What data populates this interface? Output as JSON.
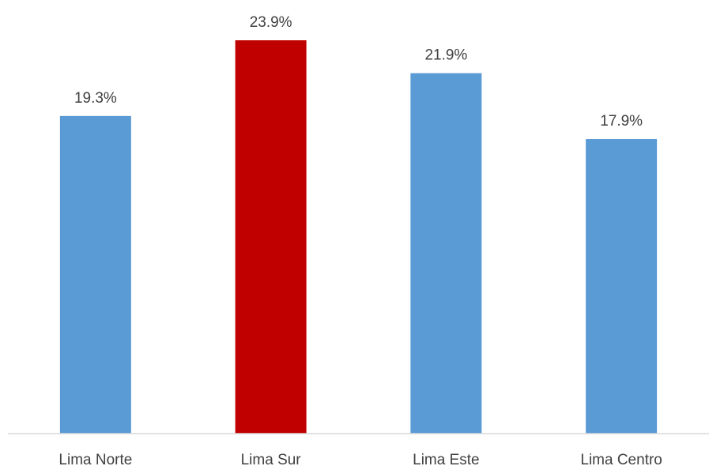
{
  "chart_data": {
    "type": "bar",
    "categories": [
      "Lima Norte",
      "Lima Sur",
      "Lima Este",
      "Lima Centro"
    ],
    "values": [
      19.3,
      23.9,
      21.9,
      17.9
    ],
    "data_labels": [
      "19.3%",
      "23.9%",
      "21.9%",
      "17.9%"
    ],
    "colors": [
      "#5B9BD5",
      "#C00000",
      "#5B9BD5",
      "#5B9BD5"
    ],
    "title": "",
    "xlabel": "",
    "ylabel": "",
    "ylim": [
      0,
      23.9
    ],
    "grid": false,
    "legend": "none"
  }
}
